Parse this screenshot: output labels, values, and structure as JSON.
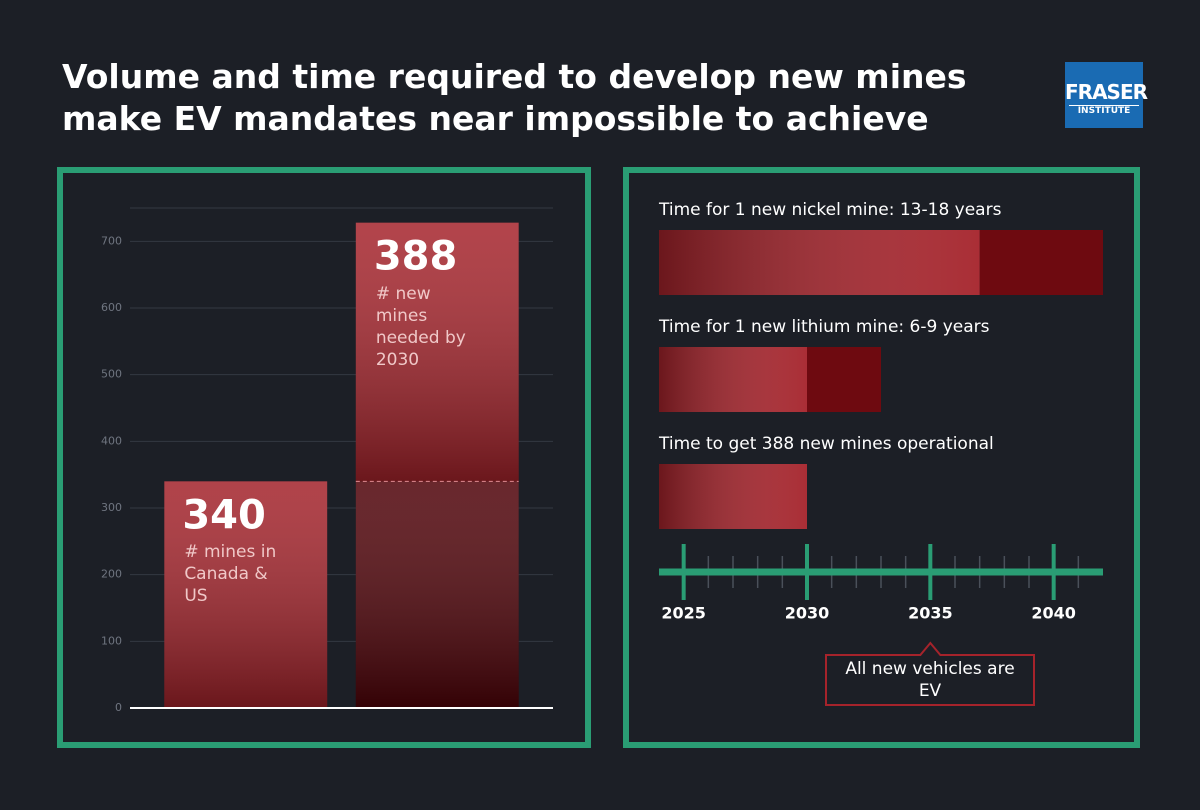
{
  "title": "Volume and time required to develop new mines make EV mandates near impossible to achieve",
  "logo": {
    "name": "FRASER",
    "sub": "INSTITUTE"
  },
  "chart_data": [
    {
      "type": "stacked-bar",
      "categories": [
        null,
        null
      ],
      "series": [
        {
          "name": "# mines in Canada & US",
          "values": [
            340,
            340
          ],
          "colors": [
            "#a3222a",
            "#4f0208"
          ],
          "labeled": [
            true,
            false
          ]
        },
        {
          "name": "# new mines needed by 2030",
          "values": [
            null,
            388
          ],
          "colors": [
            null,
            "#a5232b"
          ],
          "labeled": [
            false,
            true
          ]
        }
      ],
      "ylim": [
        0,
        750
      ],
      "yticks": [
        0,
        100,
        200,
        300,
        400,
        500,
        600,
        700
      ],
      "grid": true
    },
    {
      "type": "timeline",
      "xlim": [
        2024,
        2042
      ],
      "xticks": [
        2025,
        2030,
        2035,
        2040
      ],
      "xticks_minor": [
        2026,
        2027,
        2028,
        2029,
        2031,
        2032,
        2033,
        2034,
        2036,
        2037,
        2038,
        2039,
        2041
      ],
      "bars": [
        {
          "label": "Time for 1 new nickel mine: 13-18 years",
          "start": 2024,
          "min": 13,
          "max": 18
        },
        {
          "label": "Time for 1 new lithium mine: 6-9 years",
          "start": 2024,
          "min": 6,
          "max": 9
        },
        {
          "label": "Time to get 388 new mines operational",
          "start": 2024,
          "min": 6
        }
      ],
      "color": "#a5232b",
      "range_color": "#6e0a10",
      "axis_color": "#2a9d74",
      "annotation": {
        "text": "All new vehicles are EV",
        "x": 2035
      }
    }
  ]
}
